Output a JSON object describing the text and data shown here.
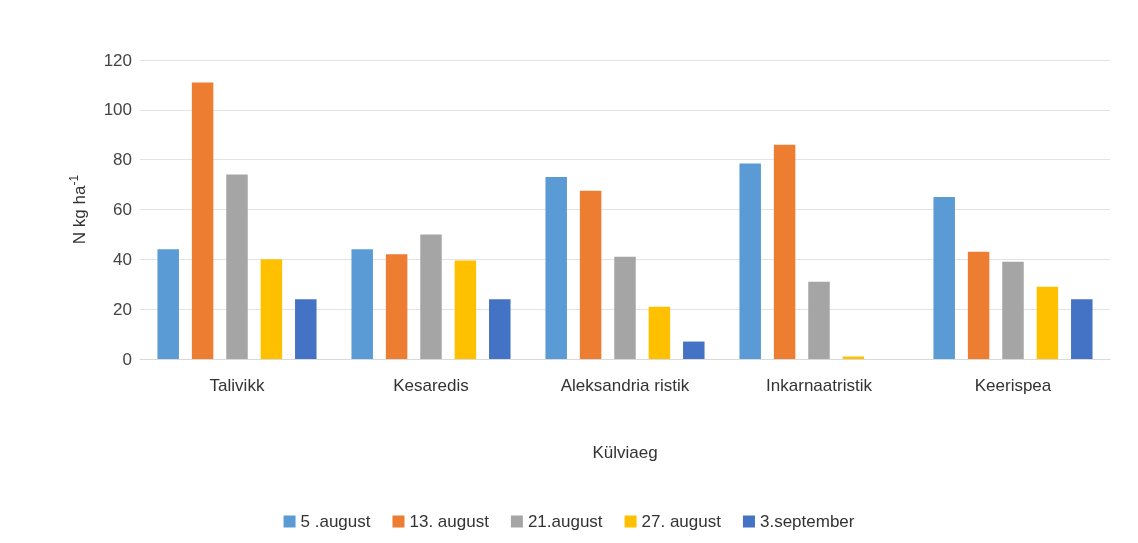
{
  "chart_data": {
    "type": "bar",
    "xlabel": "Külviaeg",
    "ylabel": "N kg ha$^{-1}$",
    "categories": [
      "Talivikk",
      "Kesaredis",
      "Aleksandria ristik",
      "Inkarnaatristik",
      "Keerispea"
    ],
    "series": [
      {
        "name": "5 .august",
        "color": "#5b9bd5",
        "values": [
          44,
          44,
          73,
          78.5,
          65
        ]
      },
      {
        "name": "13. august",
        "color": "#ed7d31",
        "values": [
          111,
          42,
          67.5,
          86,
          43
        ]
      },
      {
        "name": "21.august",
        "color": "#a5a5a5",
        "values": [
          74,
          50,
          41,
          31,
          39
        ]
      },
      {
        "name": "27. august",
        "color": "#ffc000",
        "values": [
          40,
          39.5,
          21,
          1,
          29
        ]
      },
      {
        "name": "3.september",
        "color": "#4472c4",
        "values": [
          24,
          24,
          7,
          0,
          24
        ]
      }
    ],
    "ylim": [
      0,
      120
    ],
    "yticks": [
      0,
      20,
      40,
      60,
      80,
      100,
      120
    ],
    "grid": "y",
    "legend": "bottom"
  }
}
